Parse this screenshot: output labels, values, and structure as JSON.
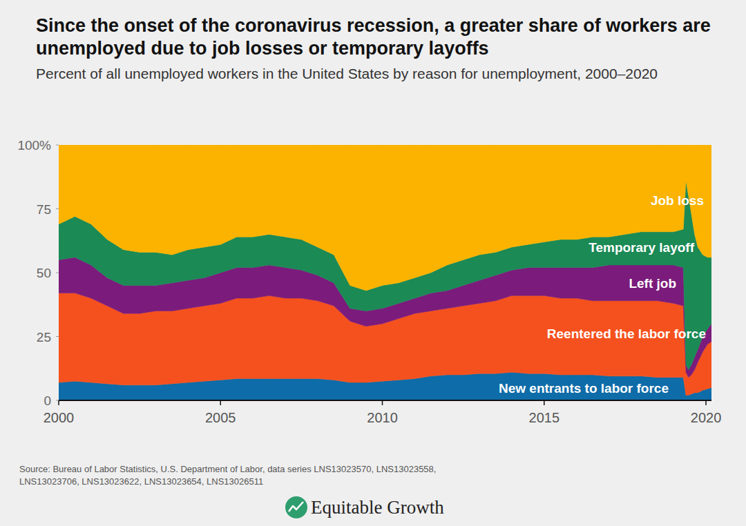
{
  "chart_data": {
    "type": "area",
    "stacked": true,
    "grid": false,
    "title": "Since the onset of the coronavirus recession, a greater share of workers are unemployed due to job losses or temporary layoffs",
    "subtitle": "Percent of all unemployed workers in the United States by reason for unemployment, 2000–2020",
    "source": "Source: Bureau of Labor Statistics, U.S. Department of Labor, data series LNS13023570, LNS13023558, LNS13023706, LNS13023622, LNS13023654, LNS13026511",
    "credit": "Equitable Growth",
    "xlim": [
      2000,
      2020.17
    ],
    "xticks": [
      2000,
      2005,
      2010,
      2015,
      2020
    ],
    "ylim": [
      0,
      100
    ],
    "yticks": [
      0,
      25,
      50,
      75,
      {
        "value": 100,
        "label": "100%"
      }
    ],
    "x": [
      2000.0,
      2000.5,
      2001.0,
      2001.5,
      2002.0,
      2002.5,
      2003.0,
      2003.5,
      2004.0,
      2004.5,
      2005.0,
      2005.5,
      2006.0,
      2006.5,
      2007.0,
      2007.5,
      2008.0,
      2008.5,
      2009.0,
      2009.5,
      2010.0,
      2010.5,
      2011.0,
      2011.5,
      2012.0,
      2012.5,
      2013.0,
      2013.5,
      2014.0,
      2014.5,
      2015.0,
      2015.5,
      2016.0,
      2016.5,
      2017.0,
      2017.5,
      2018.0,
      2018.5,
      2019.0,
      2019.3,
      2019.38,
      2019.46,
      2019.55,
      2019.65,
      2019.75,
      2019.9,
      2020.05,
      2020.17
    ],
    "series": [
      {
        "name": "New entrants to labor force",
        "color": "#0e6ca8",
        "values": [
          7,
          7.5,
          7,
          6.5,
          6,
          6,
          6,
          6.5,
          7,
          7.5,
          8,
          8.5,
          8.5,
          8.5,
          8.5,
          8.5,
          8.5,
          8,
          7,
          7,
          7.5,
          8,
          8.5,
          9.5,
          10,
          10,
          10.5,
          10.5,
          11,
          10.5,
          10.5,
          10,
          10,
          10,
          9.5,
          9.5,
          9.5,
          9,
          9,
          9,
          2,
          2,
          2.5,
          3,
          3,
          4,
          4.5,
          5
        ]
      },
      {
        "name": "Reentered the labor force",
        "color": "#f5511e",
        "values": [
          35,
          34.5,
          33,
          30.5,
          28,
          28,
          29,
          28.5,
          29,
          29.5,
          30,
          31.5,
          31.5,
          32.5,
          31.5,
          31.5,
          30.5,
          29,
          24,
          22,
          22.5,
          24,
          25.5,
          25.5,
          26,
          27,
          27.5,
          28.5,
          30,
          30.5,
          30.5,
          30,
          30,
          29,
          29.5,
          29.5,
          29.5,
          30,
          29,
          28,
          9,
          7,
          7.5,
          9,
          12,
          15,
          17.5,
          18
        ]
      },
      {
        "name": "Left job",
        "color": "#7b1c7c",
        "values": [
          13,
          14,
          13,
          11,
          11,
          11,
          10,
          11,
          11,
          11,
          12,
          12,
          12,
          12,
          12,
          11,
          10,
          9,
          5,
          6,
          6,
          6,
          6,
          7,
          7,
          8,
          9,
          10,
          10,
          11,
          11,
          12,
          12,
          13,
          14,
          14,
          14,
          14,
          15,
          15,
          3,
          3,
          4,
          5,
          5,
          6,
          6,
          7
        ]
      },
      {
        "name": "Temporary layoff",
        "color": "#1b8a55",
        "values": [
          14,
          16,
          16,
          15,
          14,
          13,
          13,
          11,
          12,
          12,
          11,
          12,
          12,
          12,
          12,
          12,
          11,
          11,
          9,
          8,
          9,
          8,
          8,
          8,
          10,
          10,
          10,
          9,
          9,
          9,
          10,
          11,
          11,
          12,
          11,
          12,
          13,
          13,
          13,
          15,
          72,
          68,
          59,
          48,
          40,
          32,
          28,
          26
        ]
      },
      {
        "name": "Job loss",
        "color": "#fbb300",
        "values": [
          31,
          28,
          31,
          37,
          41,
          42,
          42,
          43,
          41,
          40,
          39,
          36,
          36,
          35,
          36,
          37,
          40,
          43,
          55,
          57,
          55,
          54,
          52,
          50,
          47,
          45,
          43,
          42,
          40,
          39,
          38,
          37,
          37,
          36,
          36,
          35,
          34,
          34,
          34,
          33,
          14,
          20,
          27,
          35,
          40,
          43,
          44,
          44
        ]
      }
    ]
  }
}
